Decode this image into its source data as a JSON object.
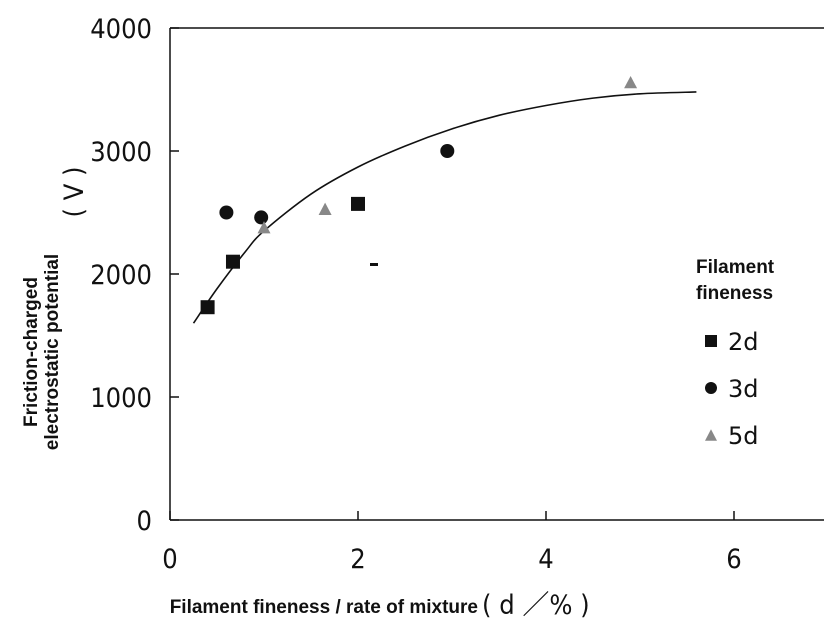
{
  "chart_data": {
    "type": "scatter",
    "xlabel": "Filament fineness / rate of mixture",
    "xlabel_unit": "( d ／% )",
    "ylabel_line1": "Friction-charged",
    "ylabel_line2": "electrostatic potential",
    "ylabel_unit": "( V )",
    "xlim": [
      0,
      7
    ],
    "ylim": [
      0,
      4000
    ],
    "xticks": [
      0,
      2,
      4,
      6
    ],
    "yticks": [
      0,
      1000,
      2000,
      3000,
      4000
    ],
    "xtick_labels": [
      "0",
      "2",
      "4",
      "6"
    ],
    "ytick_labels": [
      "0",
      "1000",
      "2000",
      "3000",
      "4000"
    ],
    "grid": false,
    "legend": {
      "title_line1": "Filament",
      "title_line2": "fineness",
      "position": "right"
    },
    "series": [
      {
        "name": "2d",
        "marker": "square",
        "color": "#111111",
        "points": [
          [
            0.4,
            1730
          ],
          [
            0.67,
            2100
          ],
          [
            2.0,
            2570
          ]
        ]
      },
      {
        "name": "3d",
        "marker": "circle",
        "color": "#111111",
        "points": [
          [
            0.6,
            2500
          ],
          [
            0.97,
            2460
          ],
          [
            2.95,
            3000
          ]
        ]
      },
      {
        "name": "5d",
        "marker": "triangle",
        "color": "#888888",
        "points": [
          [
            1.0,
            2380
          ],
          [
            1.65,
            2530
          ],
          [
            4.9,
            3560
          ]
        ]
      }
    ],
    "trend_curve": {
      "color": "#111111",
      "points": [
        [
          0.25,
          1600
        ],
        [
          0.5,
          1880
        ],
        [
          0.8,
          2180
        ],
        [
          1.0,
          2350
        ],
        [
          1.5,
          2650
        ],
        [
          2.0,
          2870
        ],
        [
          2.5,
          3040
        ],
        [
          3.0,
          3180
        ],
        [
          3.5,
          3290
        ],
        [
          4.0,
          3370
        ],
        [
          4.5,
          3430
        ],
        [
          5.0,
          3465
        ],
        [
          5.6,
          3480
        ]
      ]
    }
  }
}
